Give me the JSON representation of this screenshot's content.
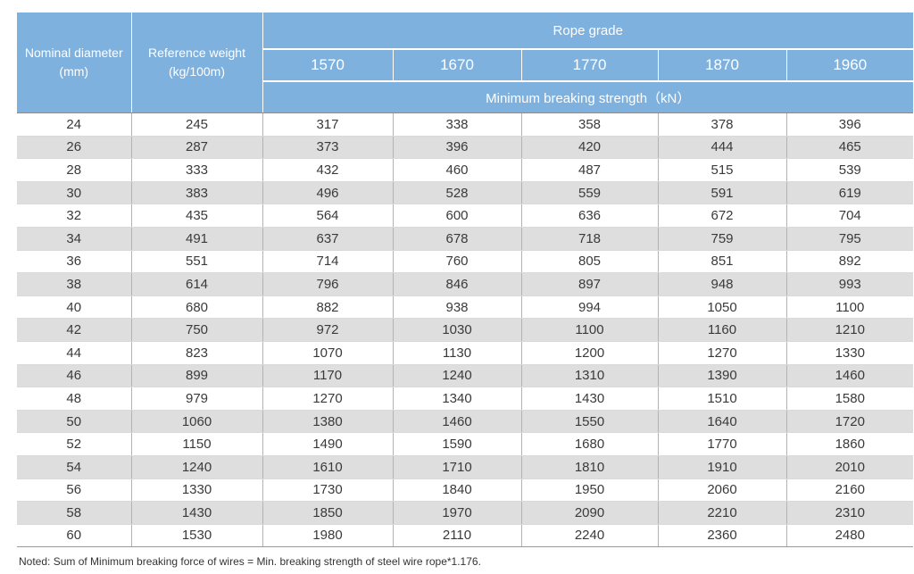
{
  "header": {
    "col_nominal_line1": "Nominal diameter",
    "col_nominal_line2": "(mm)",
    "col_weight_line1": "Reference weight",
    "col_weight_line2": "(kg/100m)",
    "rope_grade": "Rope grade",
    "grades": [
      "1570",
      "1670",
      "1770",
      "1870",
      "1960"
    ],
    "min_strength": "Minimum breaking strength（kN）"
  },
  "rows": [
    [
      "24",
      "245",
      "317",
      "338",
      "358",
      "378",
      "396"
    ],
    [
      "26",
      "287",
      "373",
      "396",
      "420",
      "444",
      "465"
    ],
    [
      "28",
      "333",
      "432",
      "460",
      "487",
      "515",
      "539"
    ],
    [
      "30",
      "383",
      "496",
      "528",
      "559",
      "591",
      "619"
    ],
    [
      "32",
      "435",
      "564",
      "600",
      "636",
      "672",
      "704"
    ],
    [
      "34",
      "491",
      "637",
      "678",
      "718",
      "759",
      "795"
    ],
    [
      "36",
      "551",
      "714",
      "760",
      "805",
      "851",
      "892"
    ],
    [
      "38",
      "614",
      "796",
      "846",
      "897",
      "948",
      "993"
    ],
    [
      "40",
      "680",
      "882",
      "938",
      "994",
      "1050",
      "1100"
    ],
    [
      "42",
      "750",
      "972",
      "1030",
      "1100",
      "1160",
      "1210"
    ],
    [
      "44",
      "823",
      "1070",
      "1130",
      "1200",
      "1270",
      "1330"
    ],
    [
      "46",
      "899",
      "1170",
      "1240",
      "1310",
      "1390",
      "1460"
    ],
    [
      "48",
      "979",
      "1270",
      "1340",
      "1430",
      "1510",
      "1580"
    ],
    [
      "50",
      "1060",
      "1380",
      "1460",
      "1550",
      "1640",
      "1720"
    ],
    [
      "52",
      "1150",
      "1490",
      "1590",
      "1680",
      "1770",
      "1860"
    ],
    [
      "54",
      "1240",
      "1610",
      "1710",
      "1810",
      "1910",
      "2010"
    ],
    [
      "56",
      "1330",
      "1730",
      "1840",
      "1950",
      "2060",
      "2160"
    ],
    [
      "58",
      "1430",
      "1850",
      "1970",
      "2090",
      "2210",
      "2310"
    ],
    [
      "60",
      "1530",
      "1980",
      "2110",
      "2240",
      "2360",
      "2480"
    ]
  ],
  "note": "Noted: Sum of Minimum breaking force of wires = Min. breaking strength of steel wire rope*1.176.",
  "colors": {
    "header_bg": "#7fb1de",
    "alt_row_bg": "#dedede"
  }
}
